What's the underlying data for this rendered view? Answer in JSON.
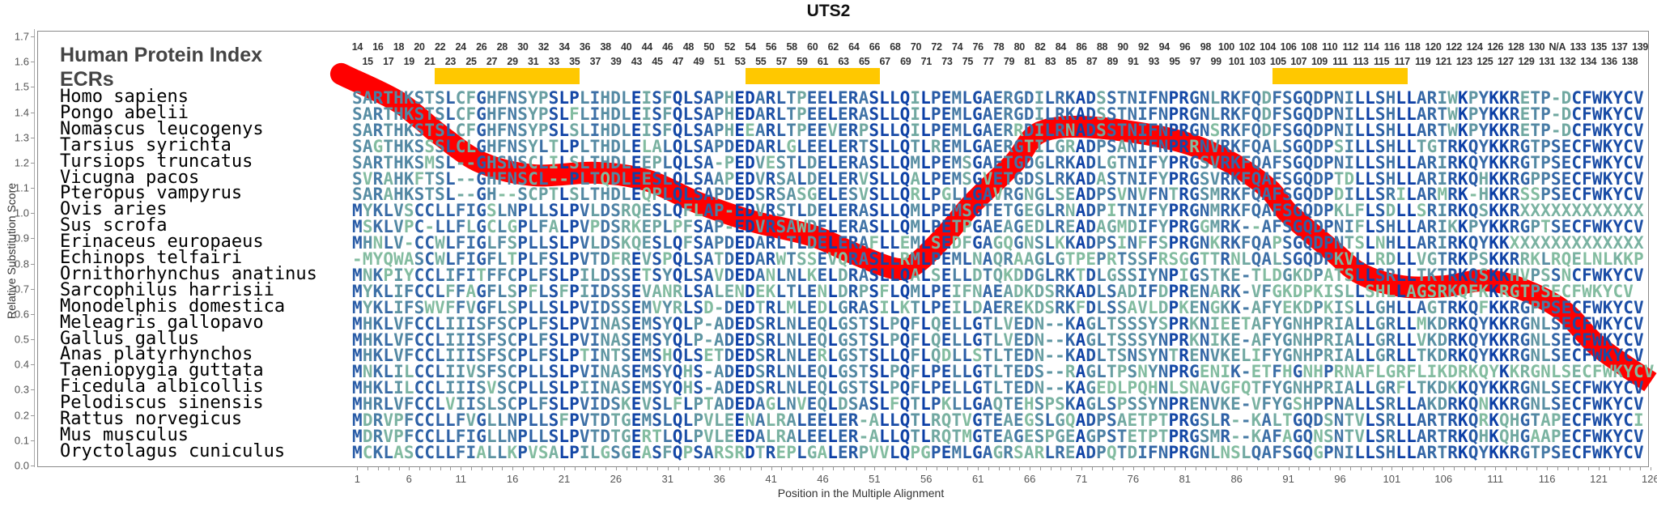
{
  "title": "UTS2",
  "human_protein_index_label": "Human Protein Index",
  "ecrs_label": "ECRs",
  "colors": {
    "curve": "#ff0000",
    "ecr": "#ffc800",
    "res_high": "#0b3ea6",
    "res_mid": "#3f72a6",
    "res_low": "#5e94a2",
    "res_min": "#8cc6a0"
  },
  "human_index_labels": [
    "14",
    "15",
    "16",
    "17",
    "18",
    "19",
    "20",
    "21",
    "22",
    "23",
    "24",
    "25",
    "26",
    "27",
    "28",
    "29",
    "30",
    "31",
    "32",
    "33",
    "34",
    "35",
    "36",
    "37",
    "38",
    "39",
    "40",
    "43",
    "44",
    "45",
    "46",
    "47",
    "48",
    "49",
    "50",
    "51",
    "52",
    "53",
    "54",
    "55",
    "56",
    "57",
    "58",
    "59",
    "60",
    "61",
    "62",
    "63",
    "64",
    "65",
    "66",
    "67",
    "68",
    "69",
    "70",
    "71",
    "72",
    "73",
    "74",
    "75",
    "76",
    "77",
    "78",
    "79",
    "80",
    "81",
    "82",
    "83",
    "84",
    "85",
    "86",
    "87",
    "88",
    "89",
    "90",
    "91",
    "92",
    "93",
    "94",
    "95",
    "96",
    "97",
    "98",
    "99",
    "100",
    "101",
    "102",
    "103",
    "104",
    "105",
    "106",
    "107",
    "108",
    "109",
    "110",
    "111",
    "112",
    "113",
    "114",
    "115",
    "116",
    "117",
    "118",
    "119",
    "120",
    "121",
    "122",
    "123",
    "124",
    "125",
    "126",
    "127",
    "128",
    "129",
    "130",
    "131",
    "N/A",
    "132",
    "133",
    "134",
    "135",
    "136",
    "137",
    "138",
    "139"
  ],
  "ecr_ranges": [
    [
      9,
      22
    ],
    [
      39,
      51
    ],
    [
      90,
      102
    ]
  ],
  "alignment": [
    {
      "species": "Homo sapiens",
      "seq": "SARTHKSTSLCFGHFNSYPSLPLIHDLEISFQLSAPHEDARLTPEELERASLLQILPEMLGAERGDILRKADSSTNIFNPRGNLRKFQDFSGQDPNILLSHLLARIWKPYKKRETP-DCFWKYCV"
    },
    {
      "species": "Pongo abelii",
      "seq": "SARTHKSTSLCFGHFNSYPSLFLIHDLEISFQLSAPHEDARLTPEELERASLLQILPEMLGAERGDILRKADSSTNIFNPRGNLRKFQDFSGQDPNILLSHLLARTWKPYKKRETP-DCFWKYCV"
    },
    {
      "species": "Nomascus leucogenys",
      "seq": "SARTHKSTSLCFGHFNSYPSLSLIHDLEISFQLSAPHEEARLTPEEVERPSLLQILPEMLGAERRDILRNADSSTNIFNPRGNSRKFQDFSGQDPNILLSHLLARTWKPYKKRETP-DCFWKYCV"
    },
    {
      "species": "Tarsius syrichta",
      "seq": "SAGTHKSSSLCLGHFNSYLTLPLTHDLELALQLSAPDEDARLGLEELERTSLLQTLREMLGAERGTILGRADPSANIFNPRRNVRKFQALSGQDPSILLSHLLTGTRKQYKKRGTPSECFWKYCV"
    },
    {
      "species": "Tursiops truncatus",
      "seq": "SARTHKSMSL--GHSNSCLILSLTHDLEEPLQLSA-PEDVESTLDELERASLLQMLPEMSGAETGDGLRKADLGTNIFYPRGSVRKFQAFSGQDPNILLSHLLARIRKQYKKRGTPSECFWKYCV"
    },
    {
      "species": "Vicugna pacos",
      "seq": "SVRAHKFTSL--GHFNSCL--PLTQDLEESLQLSAAPEDVRSALDELERVSLLQALPEMSGVETGDSLRKADASTNIFYPRGSVRKFQAFSGQDPTDLLSHLLARIRKQHKKRGPPSECFWKYCV"
    },
    {
      "species": "Pteropus vampyrus",
      "seq": "SARAHKSTSL--GH--SCPTLSLTHDLEQPLQLSAPDEDSRSASGELESVSLLQRLPGLLGAVRGNGLSEADPSVNVFNTRGSMRKFQAFSGQDPDILLSRILARMRK-HKKRSSPSECFWKYCV"
    },
    {
      "species": "Ovis aries",
      "seq": "MYKLVSCCLLFIGSLNPLLSLPVLDSRQESLQFLAP-EDVRSTLDELERASLLQMLPEMSGTETGEGLRNADPITNIFYPRGNMRKFQAFSGQDPKLFLSDLLSRIRKQSKKRXXXXXXXXXXXX"
    },
    {
      "species": "Sus scrofa",
      "seq": "MSKLVPC-LLFLGCLGPLFALPVPDSRKEPLPFSAP-EDVRSAWDELERASLLQMLPETPGAEAGEDLREADAGMDIFYPRGGMRK--AFSGQDPNIFLSHLLARIKKPYKKRGPTSECFWKYCV"
    },
    {
      "species": "Erinaceus europaeus",
      "seq": "MHNLV-CCWLFIGLFSPLLSLPVLDSKQESLQFSAPDEDARLTLDELERAFLLEMLSEDFGAGQGNSLKKADPSINFFSPRGNKRKFQAPSGQDPNTSLNHLLARIRKQYKKXXXXXXXXXXXXX"
    },
    {
      "species": "Echinops telfairi",
      "seq": "-MYQWASCWLFIGFLTPLFSLPVTDFREVSPQLSATDEDARWTSSEVQRASLLRMLPEMLNAQRAAGLGTPEPRTSSFRSGGTTRNLQALSGQDPKVLLRDLLVGTRKPSKKRRKLRQELNLKKP"
    },
    {
      "species": "Ornithorhynchus anatinus",
      "seq": "MNKPIYCCLIFITFFCPLFSLPILDSSETSYQLSAVDEDANLNLKELDRASLLQALSELLDTQKDDGLRKTDLGSSIYNPIGSTKE-TLDGKDPATSLLSRLLTKTRKQSKKHVPSSNCFWKYCV"
    },
    {
      "species": "Sarcophilus harrisii",
      "seq": "MYKLIFCCLFFAGFLSPFLSFPIIDSSEVANRLSALENDEKLTLENLDRPSFLQMLPEIFNAEADKDSRKADLSADIFDPRENARK-VFGKDPKISLLSHLLAGSRKQFKKRGTPSECFWKYCV"
    },
    {
      "species": "Monodelphis domestica",
      "seq": "MYKLIFSWVFFVGFLSPLLSLPVIDSSEMVYRLSD-DEDTRLMLEDLGRASILKTLPEILDAEREKDSRKFDLSSAVLDPKENGKK-AFYEKDPKISLLGHLLAGTRKQFKKRGPPSECFWKYCV"
    },
    {
      "species": "Meleagris gallopavo",
      "seq": "MHKLVFCCLIIISFSCPLFSLPVINASEMSYQLP-ADEDSRLNLEQLGSTSLPQFLQELLGTLVEDN--KAGLTSSSYSPRKNIEETAFYGNHPRIALLGRLLMKDRKQYKKRGNLSECFWKYCV"
    },
    {
      "species": "Gallus gallus",
      "seq": "MHKLVFCCLIIISFSCPLFSLPVINASEMSYQLP-ADEDSRLNLEQLGSTSLPQFLQELLGTLVEDN--KAGLTSSSYNPRKNIKE-AFYGNHPRIALLGRLLVKDRKQYKKRGNLSECFWKYCV"
    },
    {
      "species": "Anas platyrhynchos",
      "seq": "MHKLVFCCLIIISFSCPLFSLPTINTSEMSHQLSETDEDSRLNLERLGSTSLLQFLQDLLSTLTEDN--KADLTSNSYNTRENVKELIFYGNHPRIALLGRLLTKDRKQYKKRGNLSECFWKYCV"
    },
    {
      "species": "Taeniopygia guttata",
      "seq": "MNKLILCCLIIVSFSCPLLSLPVINASEMSYQHS-ADEDSRLNLEQLGSTSLPQFLPELLGTLTEDS--RAGLTPSNYNPRGENIK-ETFHGNHPRNAFLGRFLIKDRKQYKKRGNLSECFWKYCV"
    },
    {
      "species": "Ficedula albicollis",
      "seq": "MHKLILCCLIIISVSCPLLSLPIINASEMSYQHS-ADEDSRLNLEQLGSTSLPQFLPELLGTLTEDN--KAGEDLPQHNLSNAVGFQTFYGNHPRIALLGRFLTKDKKQYKKRGNLSECFWKYCV"
    },
    {
      "species": "Pelodiscus sinensis",
      "seq": "MHRLVFCCLVIISLSCPLFSLPVIDSKEVSLFLPTADEDAGLNVEQLDSASLFQTLPKLLGAQTEHSPSKAGLSPSSYNPRENVKE-VFYGSHPPNALLSRLLAKDRKQNKKRGNLSECFWKYCV"
    },
    {
      "species": "Rattus norvegicus",
      "seq": "MDRVPFCCLLFVGLLNPLLSFPVTDTGEMSLQLPVLEENALRALEELER-ALLQTLRQTVGTEAEGSLGQADPSAETPTPRGSLR--KALTGQDSNTVLSRLLARTRKQRKQHGTAPECFWKYCI"
    },
    {
      "species": "Mus musculus",
      "seq": "MDRVPFCCLLFIGLLNPLLSLPVTDTGERTLQLPVLEEDALRALEELER-ALLQTLRQTMGTEAGESPGEAGPSTETPTPRGSMR--KAFAGQNSNTVLSRLLARTRKQHKQHGAAPECFWKYCV"
    },
    {
      "species": "Oryctolagus cuniculus",
      "seq": "MCKLASCCLLFIALLKPVSALPILGSGEASFQPSARSRDTREPLGALERPVVLQPGPEMLGAGRSARLREADPQTDIFNPRGNLNSLQAFSGQGPNILLSHLLARTRKQYKKRGTPSECFWKYCV"
    }
  ],
  "chart_data": {
    "type": "line",
    "title": "UTS2",
    "xlabel": "Position in the Multiple Alignment",
    "ylabel": "Relative Substitution Score",
    "xlim": [
      1,
      126
    ],
    "ylim": [
      0.0,
      1.7
    ],
    "x_ticks": [
      "1",
      "6",
      "11",
      "16",
      "21",
      "26",
      "31",
      "36",
      "41",
      "46",
      "51",
      "56",
      "61",
      "66",
      "71",
      "76",
      "81",
      "86",
      "91",
      "96",
      "101",
      "106",
      "111",
      "116",
      "121",
      "126"
    ],
    "y_ticks": [
      "0.0",
      "0.1",
      "0.2",
      "0.3",
      "0.4",
      "0.5",
      "0.6",
      "0.7",
      "0.8",
      "0.9",
      "1.0",
      "1.1",
      "1.2",
      "1.3",
      "1.4",
      "1.5",
      "1.6",
      "1.7"
    ],
    "series": [
      {
        "name": "Relative Substitution Score",
        "x": [
          -0.5,
          0,
          5,
          9,
          13,
          18,
          24,
          29,
          34,
          39,
          45,
          49,
          53,
          55,
          58,
          60.5,
          64.5,
          67,
          72,
          80,
          85,
          89,
          91,
          95,
          98,
          102,
          106,
          111,
          117,
          121,
          126
        ],
        "y": [
          1.55,
          1.54,
          1.44,
          1.31,
          1.2,
          1.15,
          1.16,
          1.13,
          1.04,
          0.97,
          0.91,
          0.84,
          0.78,
          0.8,
          0.92,
          1.04,
          1.2,
          1.32,
          1.34,
          1.29,
          1.21,
          1.1,
          1.0,
          0.86,
          0.76,
          0.71,
          0.71,
          0.73,
          0.63,
          0.47,
          0.33
        ]
      }
    ],
    "grid": false
  }
}
